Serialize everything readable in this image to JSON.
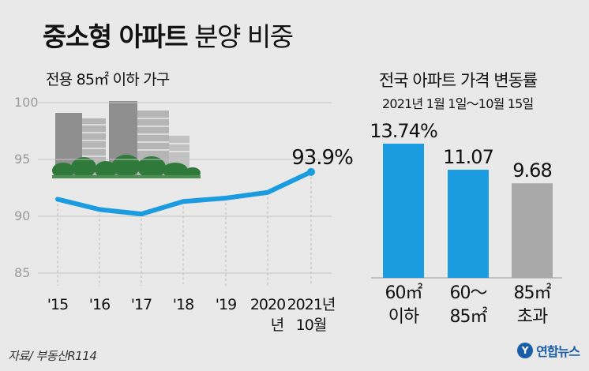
{
  "title_bold": "중소형 아파트",
  "title_light": "분양 비중",
  "source": "자료/ 부동산R114",
  "logo_text": "연합뉴스",
  "chart_data": [
    {
      "type": "line",
      "subtitle": "전용 85㎡ 이하 가구",
      "x": [
        "'15",
        "'16",
        "'17",
        "'18",
        "'19",
        "2020 년",
        "2021년 10월"
      ],
      "x_labels": [
        [
          "'15"
        ],
        [
          "'16"
        ],
        [
          "'17"
        ],
        [
          "'18"
        ],
        [
          "'19"
        ],
        [
          "2020",
          "년"
        ],
        [
          "2021년",
          "10월"
        ]
      ],
      "values": [
        91.5,
        90.6,
        90.2,
        91.3,
        91.6,
        92.1,
        93.9
      ],
      "last_label": "93.9%",
      "yticks": [
        85,
        90,
        95,
        100
      ],
      "ylim": [
        85,
        100
      ],
      "grid": true,
      "color": "#1c9ce0"
    },
    {
      "type": "bar",
      "title": "전국 아파트 가격 변동률",
      "subtitle": "2021년 1월 1일～10월 15일",
      "categories": [
        [
          "60㎡",
          "이하"
        ],
        [
          "60～",
          "85㎡"
        ],
        [
          "85㎡",
          "초과"
        ]
      ],
      "values": [
        13.74,
        11.07,
        9.68
      ],
      "value_labels": [
        "13.74%",
        "11.07",
        "9.68"
      ],
      "colors": [
        "#1c9ce0",
        "#1c9ce0",
        "#a9a9a9"
      ]
    }
  ]
}
